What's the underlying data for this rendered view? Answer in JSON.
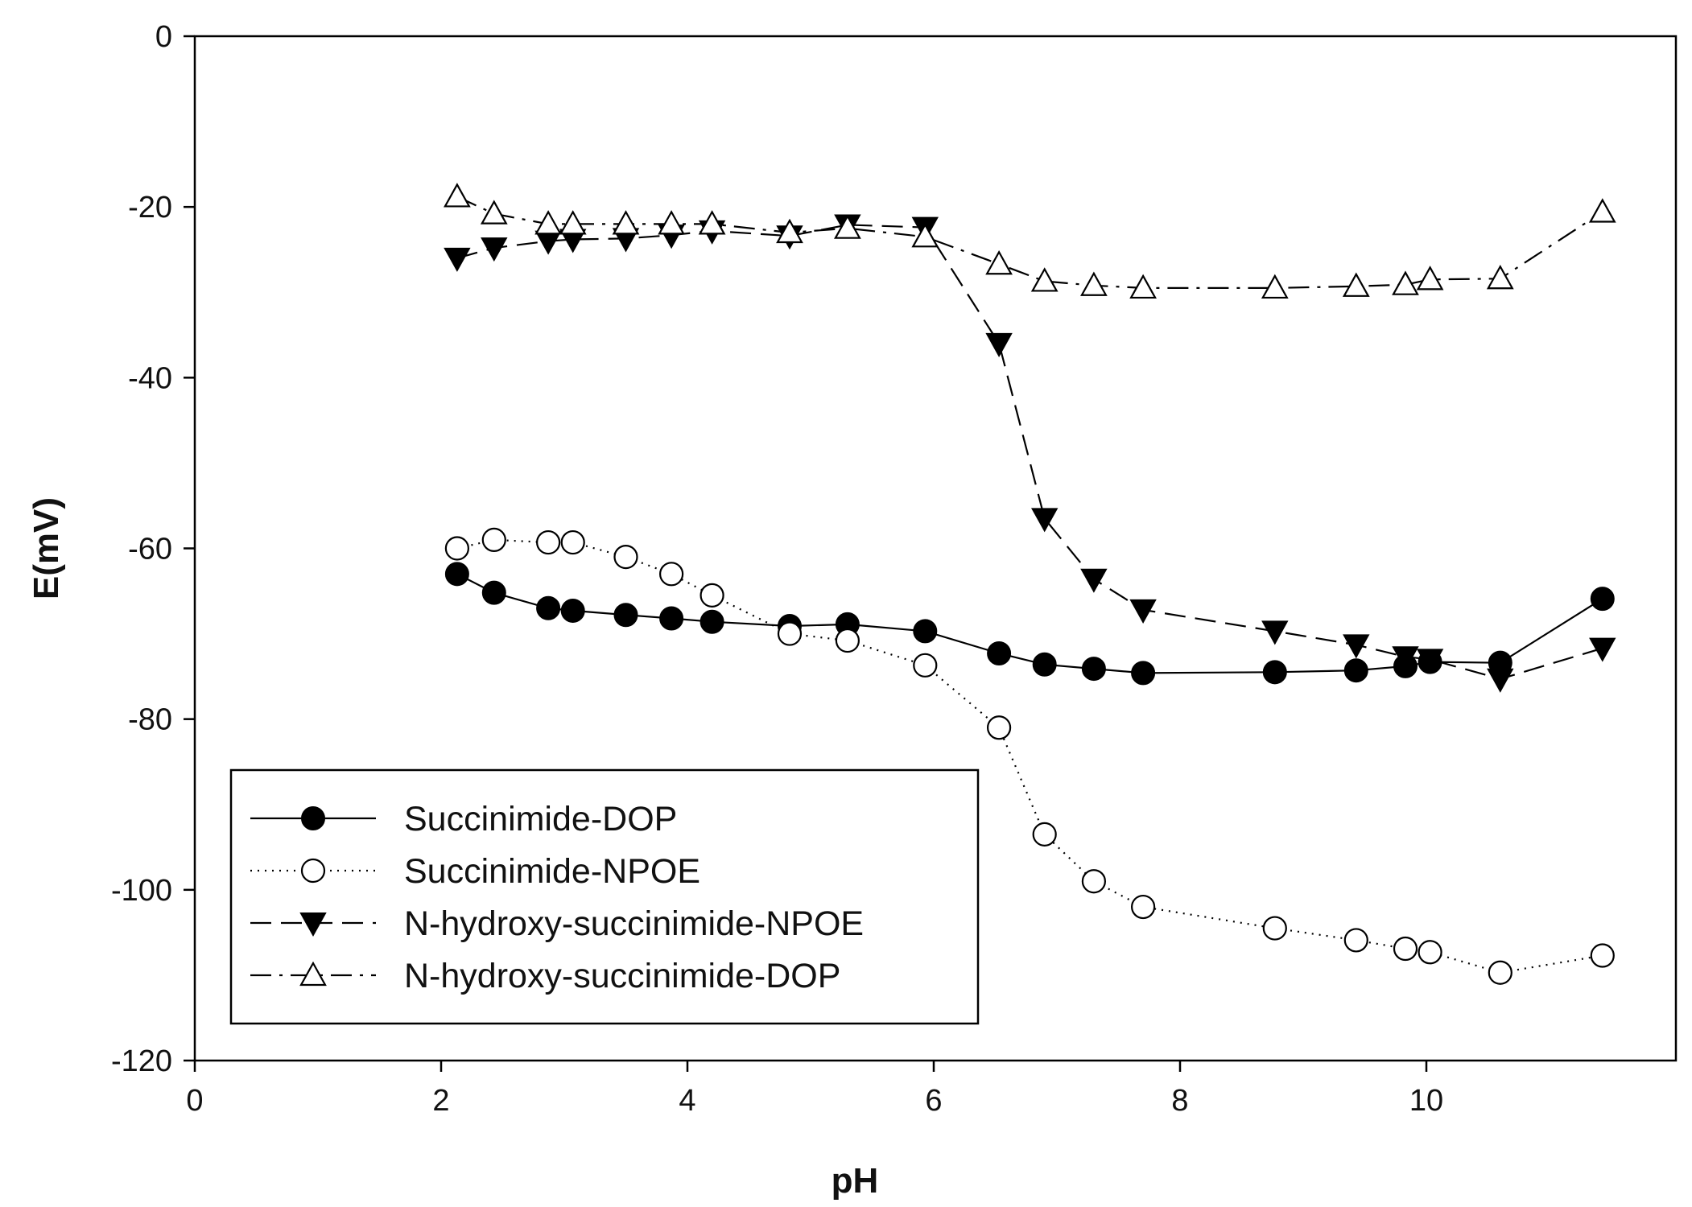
{
  "chart_data": {
    "type": "line",
    "title": "",
    "xlabel": "pH",
    "ylabel": "E(mV)",
    "xlim": [
      0,
      12
    ],
    "ylim": [
      -120,
      0
    ],
    "xticks": [
      0,
      2,
      4,
      6,
      8,
      10
    ],
    "yticks": [
      0,
      -20,
      -40,
      -60,
      -80,
      -100,
      -120
    ],
    "xtick_labels": [
      "0",
      "2",
      "4",
      "6",
      "8",
      "10"
    ],
    "ytick_labels": [
      "0",
      "-20",
      "-40",
      "-60",
      "-80",
      "-100",
      "-120"
    ],
    "grid": false,
    "legend_position": "bottom-left",
    "series": [
      {
        "name": "Succinimide-DOP",
        "marker": "filled-circle",
        "line": "solid",
        "x": [
          2.13,
          2.43,
          2.87,
          3.07,
          3.5,
          3.87,
          4.2,
          4.83,
          5.3,
          5.93,
          6.53,
          6.9,
          7.3,
          7.7,
          8.77,
          9.43,
          9.83,
          10.03,
          10.6,
          11.43
        ],
        "y": [
          -63,
          -65.2,
          -67,
          -67.3,
          -67.8,
          -68.2,
          -68.6,
          -69.1,
          -68.9,
          -69.7,
          -72.3,
          -73.6,
          -74.1,
          -74.6,
          -74.5,
          -74.3,
          -73.8,
          -73.3,
          -73.4,
          -65.9
        ]
      },
      {
        "name": "Succinimide-NPOE",
        "marker": "open-circle",
        "line": "dotted",
        "x": [
          2.13,
          2.43,
          2.87,
          3.07,
          3.5,
          3.87,
          4.2,
          4.83,
          5.3,
          5.93,
          6.53,
          6.9,
          7.3,
          7.7,
          8.77,
          9.43,
          9.83,
          10.03,
          10.6,
          11.43
        ],
        "y": [
          -60,
          -59,
          -59.3,
          -59.3,
          -61,
          -63,
          -65.5,
          -70,
          -70.8,
          -73.7,
          -81,
          -93.5,
          -99,
          -102,
          -104.5,
          -105.9,
          -106.9,
          -107.3,
          -109.7,
          -107.7
        ]
      },
      {
        "name": "N-hydroxy-succinimide-NPOE",
        "marker": "filled-triangle-down",
        "line": "dashed",
        "x": [
          2.13,
          2.43,
          2.87,
          3.07,
          3.5,
          3.87,
          4.2,
          4.83,
          5.3,
          5.93,
          6.53,
          6.9,
          7.3,
          7.7,
          8.77,
          9.43,
          9.83,
          10.03,
          10.6,
          11.43
        ],
        "y": [
          -26,
          -24.8,
          -24,
          -23.8,
          -23.7,
          -23.3,
          -22.8,
          -23.4,
          -22.1,
          -22.4,
          -36,
          -56.5,
          -63.6,
          -67.2,
          -69.7,
          -71.3,
          -72.7,
          -73,
          -75.3,
          -71.7
        ]
      },
      {
        "name": "N-hydroxy-succinimide-DOP",
        "marker": "open-triangle-up",
        "line": "dashdot",
        "x": [
          2.13,
          2.43,
          2.87,
          3.07,
          3.5,
          3.87,
          4.2,
          4.83,
          5.3,
          5.93,
          6.53,
          6.9,
          7.3,
          7.7,
          8.77,
          9.43,
          9.83,
          10.03,
          10.6,
          11.43
        ],
        "y": [
          -18.8,
          -20.8,
          -22,
          -22,
          -22,
          -22,
          -22,
          -23,
          -22.5,
          -23.5,
          -26.7,
          -28.7,
          -29.2,
          -29.5,
          -29.5,
          -29.3,
          -29.1,
          -28.5,
          -28.4,
          -20.6
        ]
      }
    ]
  }
}
